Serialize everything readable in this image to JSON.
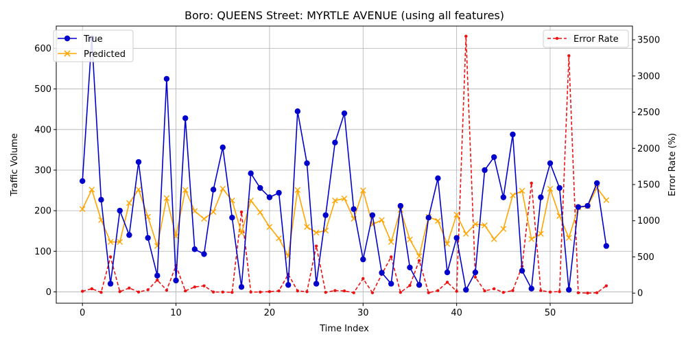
{
  "chart_data": {
    "type": "line",
    "title": "Boro: QUEENS Street: MYRTLE AVENUE (using all features)",
    "xlabel": "Time Index",
    "ylabel_left": "Traffic Volume",
    "ylabel_right": "Error Rate (%)",
    "xlim": [
      -2.8,
      58.8
    ],
    "ylim_left": [
      -28,
      655
    ],
    "ylim_right": [
      -140,
      3690
    ],
    "x_ticks": [
      0,
      10,
      20,
      30,
      40,
      50
    ],
    "y_ticks_left": [
      0,
      100,
      200,
      300,
      400,
      500,
      600
    ],
    "y_ticks_right": [
      0,
      500,
      1000,
      1500,
      2000,
      2500,
      3000,
      3500
    ],
    "grid": true,
    "legend_left": "top-left",
    "legend_right": "top-right",
    "colors": {
      "true": "#0000cc",
      "predicted": "#ffa500",
      "error": "#ee1111"
    },
    "x": [
      0,
      1,
      2,
      3,
      4,
      5,
      6,
      7,
      8,
      9,
      10,
      11,
      12,
      13,
      14,
      15,
      16,
      17,
      18,
      19,
      20,
      21,
      22,
      23,
      24,
      25,
      26,
      27,
      28,
      29,
      30,
      31,
      32,
      33,
      34,
      35,
      36,
      37,
      38,
      39,
      40,
      41,
      42,
      43,
      44,
      45,
      46,
      47,
      48,
      49,
      50,
      51,
      52,
      53,
      54,
      55,
      56
    ],
    "series": [
      {
        "name": "True",
        "axis": "left",
        "marker": "circle",
        "values": [
          273,
          625,
          227,
          20,
          200,
          140,
          320,
          133,
          40,
          525,
          28,
          428,
          105,
          93,
          252,
          356,
          183,
          12,
          292,
          256,
          233,
          244,
          17,
          445,
          317,
          20,
          189,
          368,
          440,
          204,
          80,
          189,
          47,
          20,
          212,
          60,
          17,
          183,
          280,
          48,
          133,
          5,
          48,
          300,
          332,
          233,
          388,
          52,
          8,
          233,
          317,
          256,
          5,
          209,
          212,
          268,
          113
        ]
      },
      {
        "name": "Predicted",
        "axis": "left",
        "marker": "x",
        "values": [
          204,
          252,
          177,
          123,
          123,
          219,
          252,
          185,
          113,
          231,
          137,
          251,
          199,
          180,
          197,
          254,
          225,
          145,
          225,
          196,
          160,
          132,
          88,
          251,
          160,
          146,
          151,
          225,
          230,
          180,
          250,
          166,
          177,
          123,
          202,
          129,
          88,
          185,
          175,
          118,
          190,
          143,
          167,
          164,
          130,
          155,
          238,
          249,
          130,
          143,
          254,
          187,
          133,
          208,
          211,
          256,
          226
        ]
      },
      {
        "name": "Error Rate",
        "axis": "right",
        "marker": "dot",
        "values": [
          25,
          60,
          10,
          500,
          20,
          70,
          15,
          45,
          180,
          40,
          380,
          30,
          85,
          100,
          15,
          15,
          10,
          1120,
          15,
          15,
          20,
          30,
          260,
          30,
          20,
          650,
          10,
          35,
          30,
          5,
          200,
          5,
          260,
          500,
          10,
          105,
          450,
          5,
          35,
          150,
          25,
          3550,
          220,
          30,
          60,
          10,
          35,
          370,
          1520,
          35,
          15,
          20,
          3280,
          5,
          0,
          5,
          100
        ]
      }
    ]
  }
}
